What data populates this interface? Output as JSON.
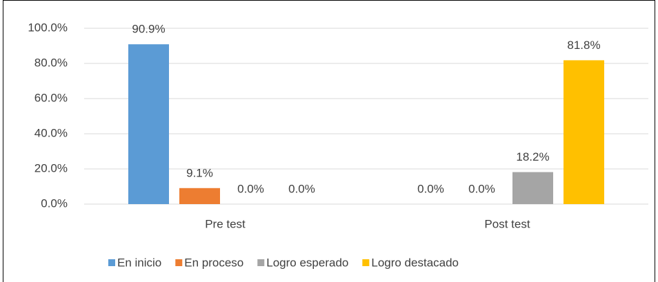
{
  "chart_data": {
    "type": "bar",
    "categories": [
      "Pre test",
      "Post test"
    ],
    "series": [
      {
        "name": "En inicio",
        "color": "#5b9bd5",
        "values": [
          90.9,
          0
        ],
        "value_labels": [
          "90.9%",
          "0.0%"
        ]
      },
      {
        "name": "En proceso",
        "color": "#ed7d31",
        "values": [
          9.1,
          0
        ],
        "value_labels": [
          "9.1%",
          "0.0%"
        ]
      },
      {
        "name": "Logro esperado",
        "color": "#a5a5a5",
        "values": [
          0,
          18.2
        ],
        "value_labels": [
          "0.0%",
          "18.2%"
        ]
      },
      {
        "name": "Logro destacado",
        "color": "#ffc000",
        "values": [
          0,
          81.8
        ],
        "value_labels": [
          "0.0%",
          "81.8%"
        ]
      }
    ],
    "ylim": [
      0,
      100
    ],
    "yticks": [
      {
        "value": 0,
        "label": "0.0%"
      },
      {
        "value": 20,
        "label": "20.0%"
      },
      {
        "value": 40,
        "label": "40.0%"
      },
      {
        "value": 60,
        "label": "60.0%"
      },
      {
        "value": 80,
        "label": "80.0%"
      },
      {
        "value": 100,
        "label": "100.0%"
      }
    ],
    "grid": true,
    "legend": "bottom"
  }
}
